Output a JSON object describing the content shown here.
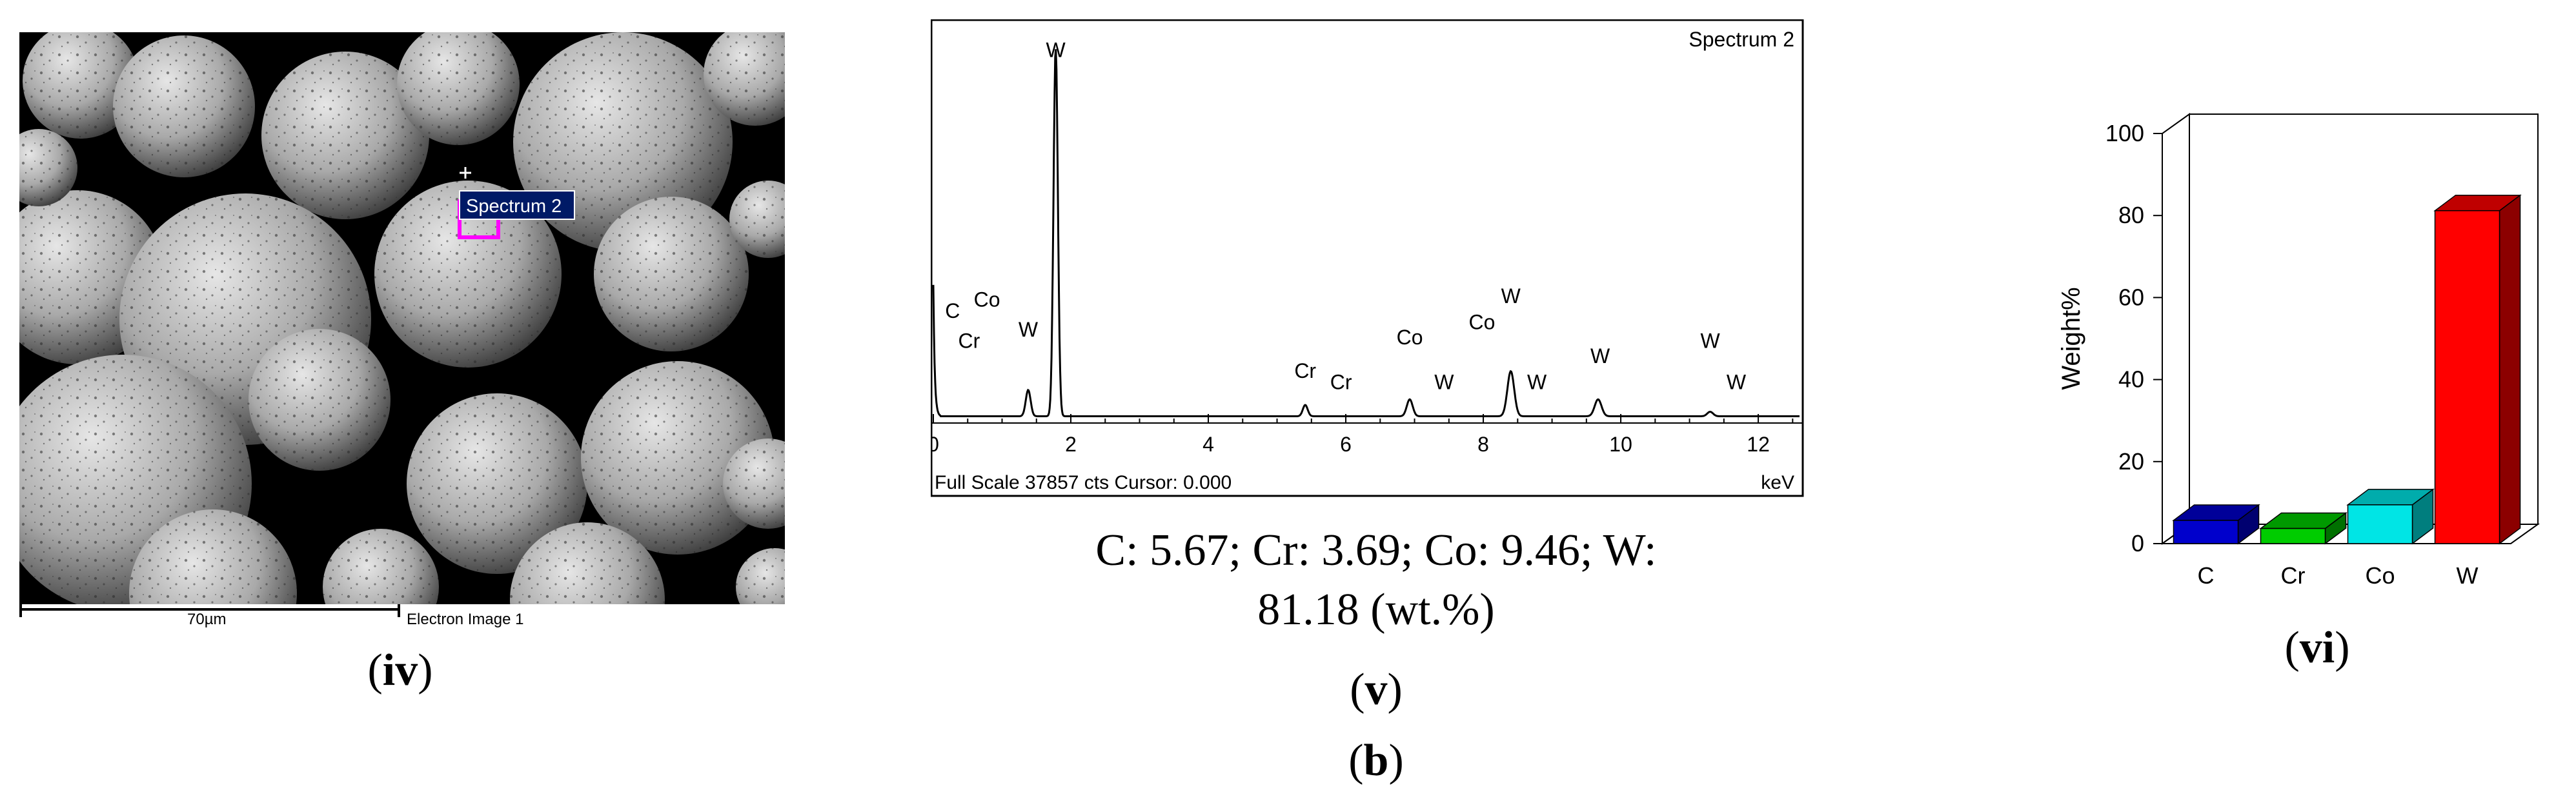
{
  "panels": {
    "iv": {
      "label": "iv",
      "sem_tag": "Spectrum 2",
      "scalebar_text": "70µm",
      "image_caption": "Electron Image 1"
    },
    "v": {
      "label": "v",
      "caption_line1": "C: 5.67; Cr: 3.69; Co: 9.46; W:",
      "caption_line2": "81.18 (wt.%)"
    },
    "vi": {
      "label": "vi"
    },
    "group_label": "b"
  },
  "chart_data": [
    {
      "type": "line",
      "title": "Spectrum 2",
      "footer_left": "Full Scale 37857 cts Cursor: 0.000",
      "xlabel": "keV",
      "ylabel": "",
      "xlim": [
        0,
        12.6
      ],
      "ylim": [
        0,
        1
      ],
      "x_ticks": [
        0,
        2,
        4,
        6,
        8,
        10,
        12
      ],
      "baseline": 0.018,
      "peaks": [
        {
          "label": "W",
          "x": 1.78,
          "height": 0.98,
          "width": 0.045
        },
        {
          "label": "W",
          "x": 1.38,
          "height": 0.07,
          "width": 0.05
        },
        {
          "label": "Cr",
          "x": 5.41,
          "height": 0.03,
          "width": 0.05
        },
        {
          "label": "Co",
          "x": 6.93,
          "height": 0.045,
          "width": 0.06
        },
        {
          "label": "W",
          "x": 8.4,
          "height": 0.12,
          "width": 0.07
        },
        {
          "label": "W",
          "x": 9.67,
          "height": 0.045,
          "width": 0.07
        },
        {
          "label": "W",
          "x": 11.3,
          "height": 0.012,
          "width": 0.06
        }
      ],
      "peak_labels": [
        {
          "text": "W",
          "x": 1.78,
          "y": 0.975
        },
        {
          "text": "C",
          "x": 0.28,
          "y": 0.28
        },
        {
          "text": "Co",
          "x": 0.78,
          "y": 0.31
        },
        {
          "text": "Cr",
          "x": 0.52,
          "y": 0.2
        },
        {
          "text": "W",
          "x": 1.38,
          "y": 0.23
        },
        {
          "text": "Cr",
          "x": 5.41,
          "y": 0.12
        },
        {
          "text": "Cr",
          "x": 5.93,
          "y": 0.09
        },
        {
          "text": "Co",
          "x": 6.93,
          "y": 0.21
        },
        {
          "text": "W",
          "x": 7.43,
          "y": 0.09
        },
        {
          "text": "Co",
          "x": 7.98,
          "y": 0.25
        },
        {
          "text": "W",
          "x": 8.4,
          "y": 0.32
        },
        {
          "text": "W",
          "x": 8.78,
          "y": 0.09
        },
        {
          "text": "W",
          "x": 9.7,
          "y": 0.16
        },
        {
          "text": "W",
          "x": 11.3,
          "y": 0.2
        },
        {
          "text": "W",
          "x": 11.68,
          "y": 0.09
        }
      ]
    },
    {
      "type": "bar",
      "categories": [
        "C",
        "Cr",
        "Co",
        "W"
      ],
      "values": [
        5.67,
        3.69,
        9.46,
        81.18
      ],
      "colors": [
        "#0000cc",
        "#00cc00",
        "#00e5e5",
        "#ff0000"
      ],
      "xlabel": "",
      "ylabel": "Weight%",
      "ylim": [
        0,
        100
      ],
      "y_ticks": [
        0,
        20,
        40,
        60,
        80,
        100
      ]
    }
  ]
}
